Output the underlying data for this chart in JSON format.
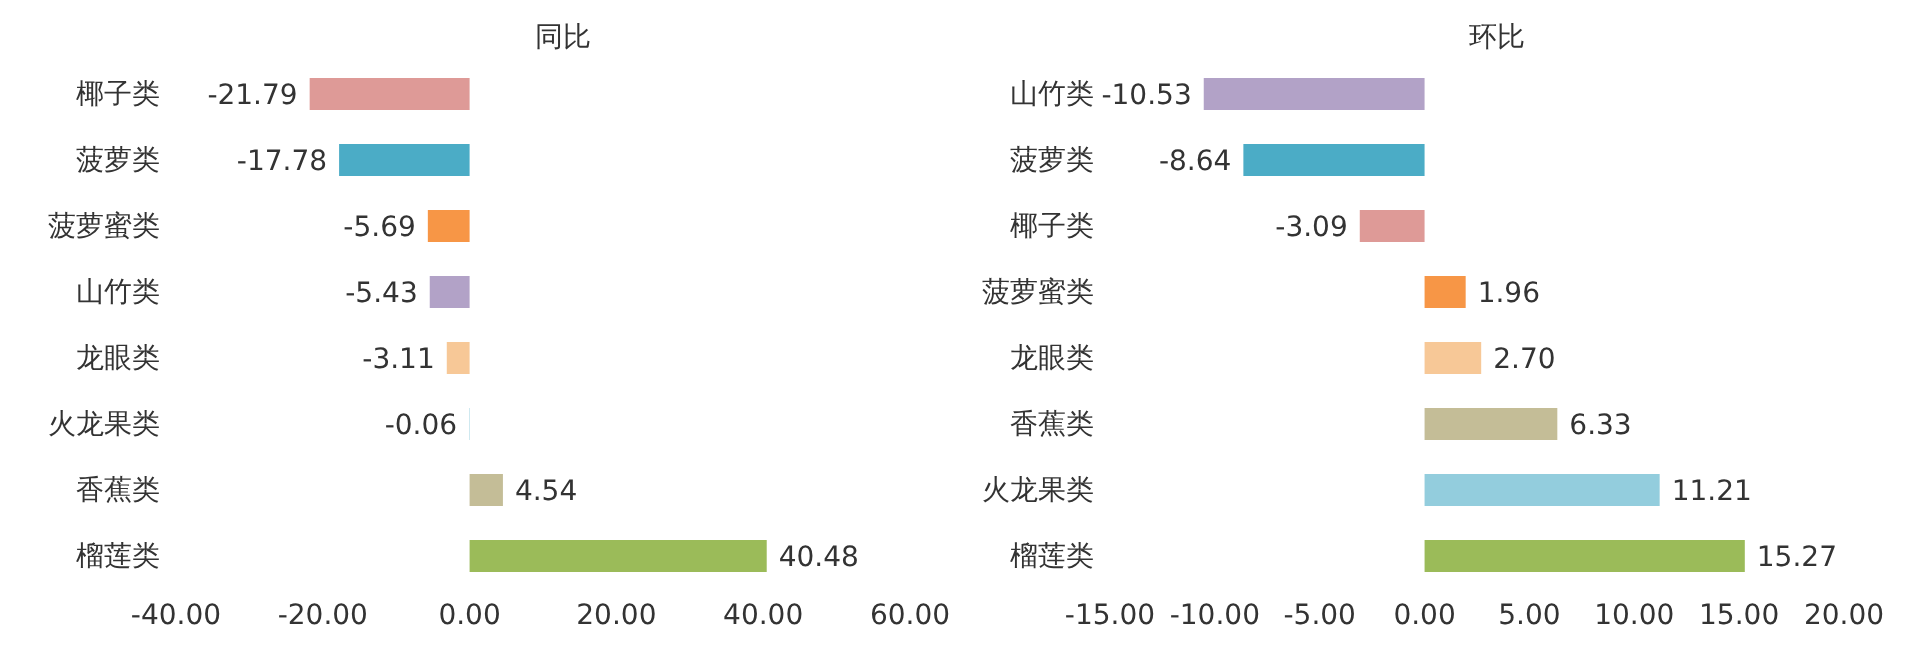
{
  "chart_data": [
    {
      "type": "bar",
      "orientation": "horizontal",
      "title": "同比",
      "categories": [
        "椰子类",
        "菠萝类",
        "菠萝蜜类",
        "山竹类",
        "龙眼类",
        "火龙果类",
        "香蕉类",
        "榴莲类"
      ],
      "values": [
        -21.79,
        -17.78,
        -5.69,
        -5.43,
        -3.11,
        -0.06,
        4.54,
        40.48
      ],
      "colors": [
        "#de9a97",
        "#4bacc6",
        "#f79646",
        "#b2a2c7",
        "#f7c897",
        "#93cddd",
        "#c4bd97",
        "#9bbb59"
      ],
      "value_labels": [
        "-21.79",
        "-17.78",
        "-5.69",
        "-5.43",
        "-3.11",
        "-0.06",
        "4.54",
        "40.48"
      ],
      "xlim": [
        -40,
        60
      ],
      "xticks": [
        {
          "value": -40,
          "label": "-40.00"
        },
        {
          "value": -20,
          "label": "-20.00"
        },
        {
          "value": 0,
          "label": "0.00"
        },
        {
          "value": 20,
          "label": "20.00"
        },
        {
          "value": 40,
          "label": "40.00"
        },
        {
          "value": 60,
          "label": "60.00"
        }
      ],
      "grid": false,
      "legend": false
    },
    {
      "type": "bar",
      "orientation": "horizontal",
      "title": "环比",
      "categories": [
        "山竹类",
        "菠萝类",
        "椰子类",
        "菠萝蜜类",
        "龙眼类",
        "香蕉类",
        "火龙果类",
        "榴莲类"
      ],
      "values": [
        -10.53,
        -8.64,
        -3.09,
        1.96,
        2.7,
        6.33,
        11.21,
        15.27
      ],
      "colors": [
        "#b2a2c7",
        "#4bacc6",
        "#de9a97",
        "#f79646",
        "#f7c897",
        "#c4bd97",
        "#93cddd",
        "#9bbb59"
      ],
      "value_labels": [
        "-10.53",
        "-8.64",
        "-3.09",
        "1.96",
        "2.70",
        "6.33",
        "11.21",
        "15.27"
      ],
      "xlim": [
        -15,
        20
      ],
      "xticks": [
        {
          "value": -15,
          "label": "-15.00"
        },
        {
          "value": -10,
          "label": "-10.00"
        },
        {
          "value": -5,
          "label": "-5.00"
        },
        {
          "value": 0,
          "label": "0.00"
        },
        {
          "value": 5,
          "label": "5.00"
        },
        {
          "value": 10,
          "label": "10.00"
        },
        {
          "value": 15,
          "label": "15.00"
        },
        {
          "value": 20,
          "label": "20.00"
        }
      ],
      "grid": false,
      "legend": false
    }
  ]
}
